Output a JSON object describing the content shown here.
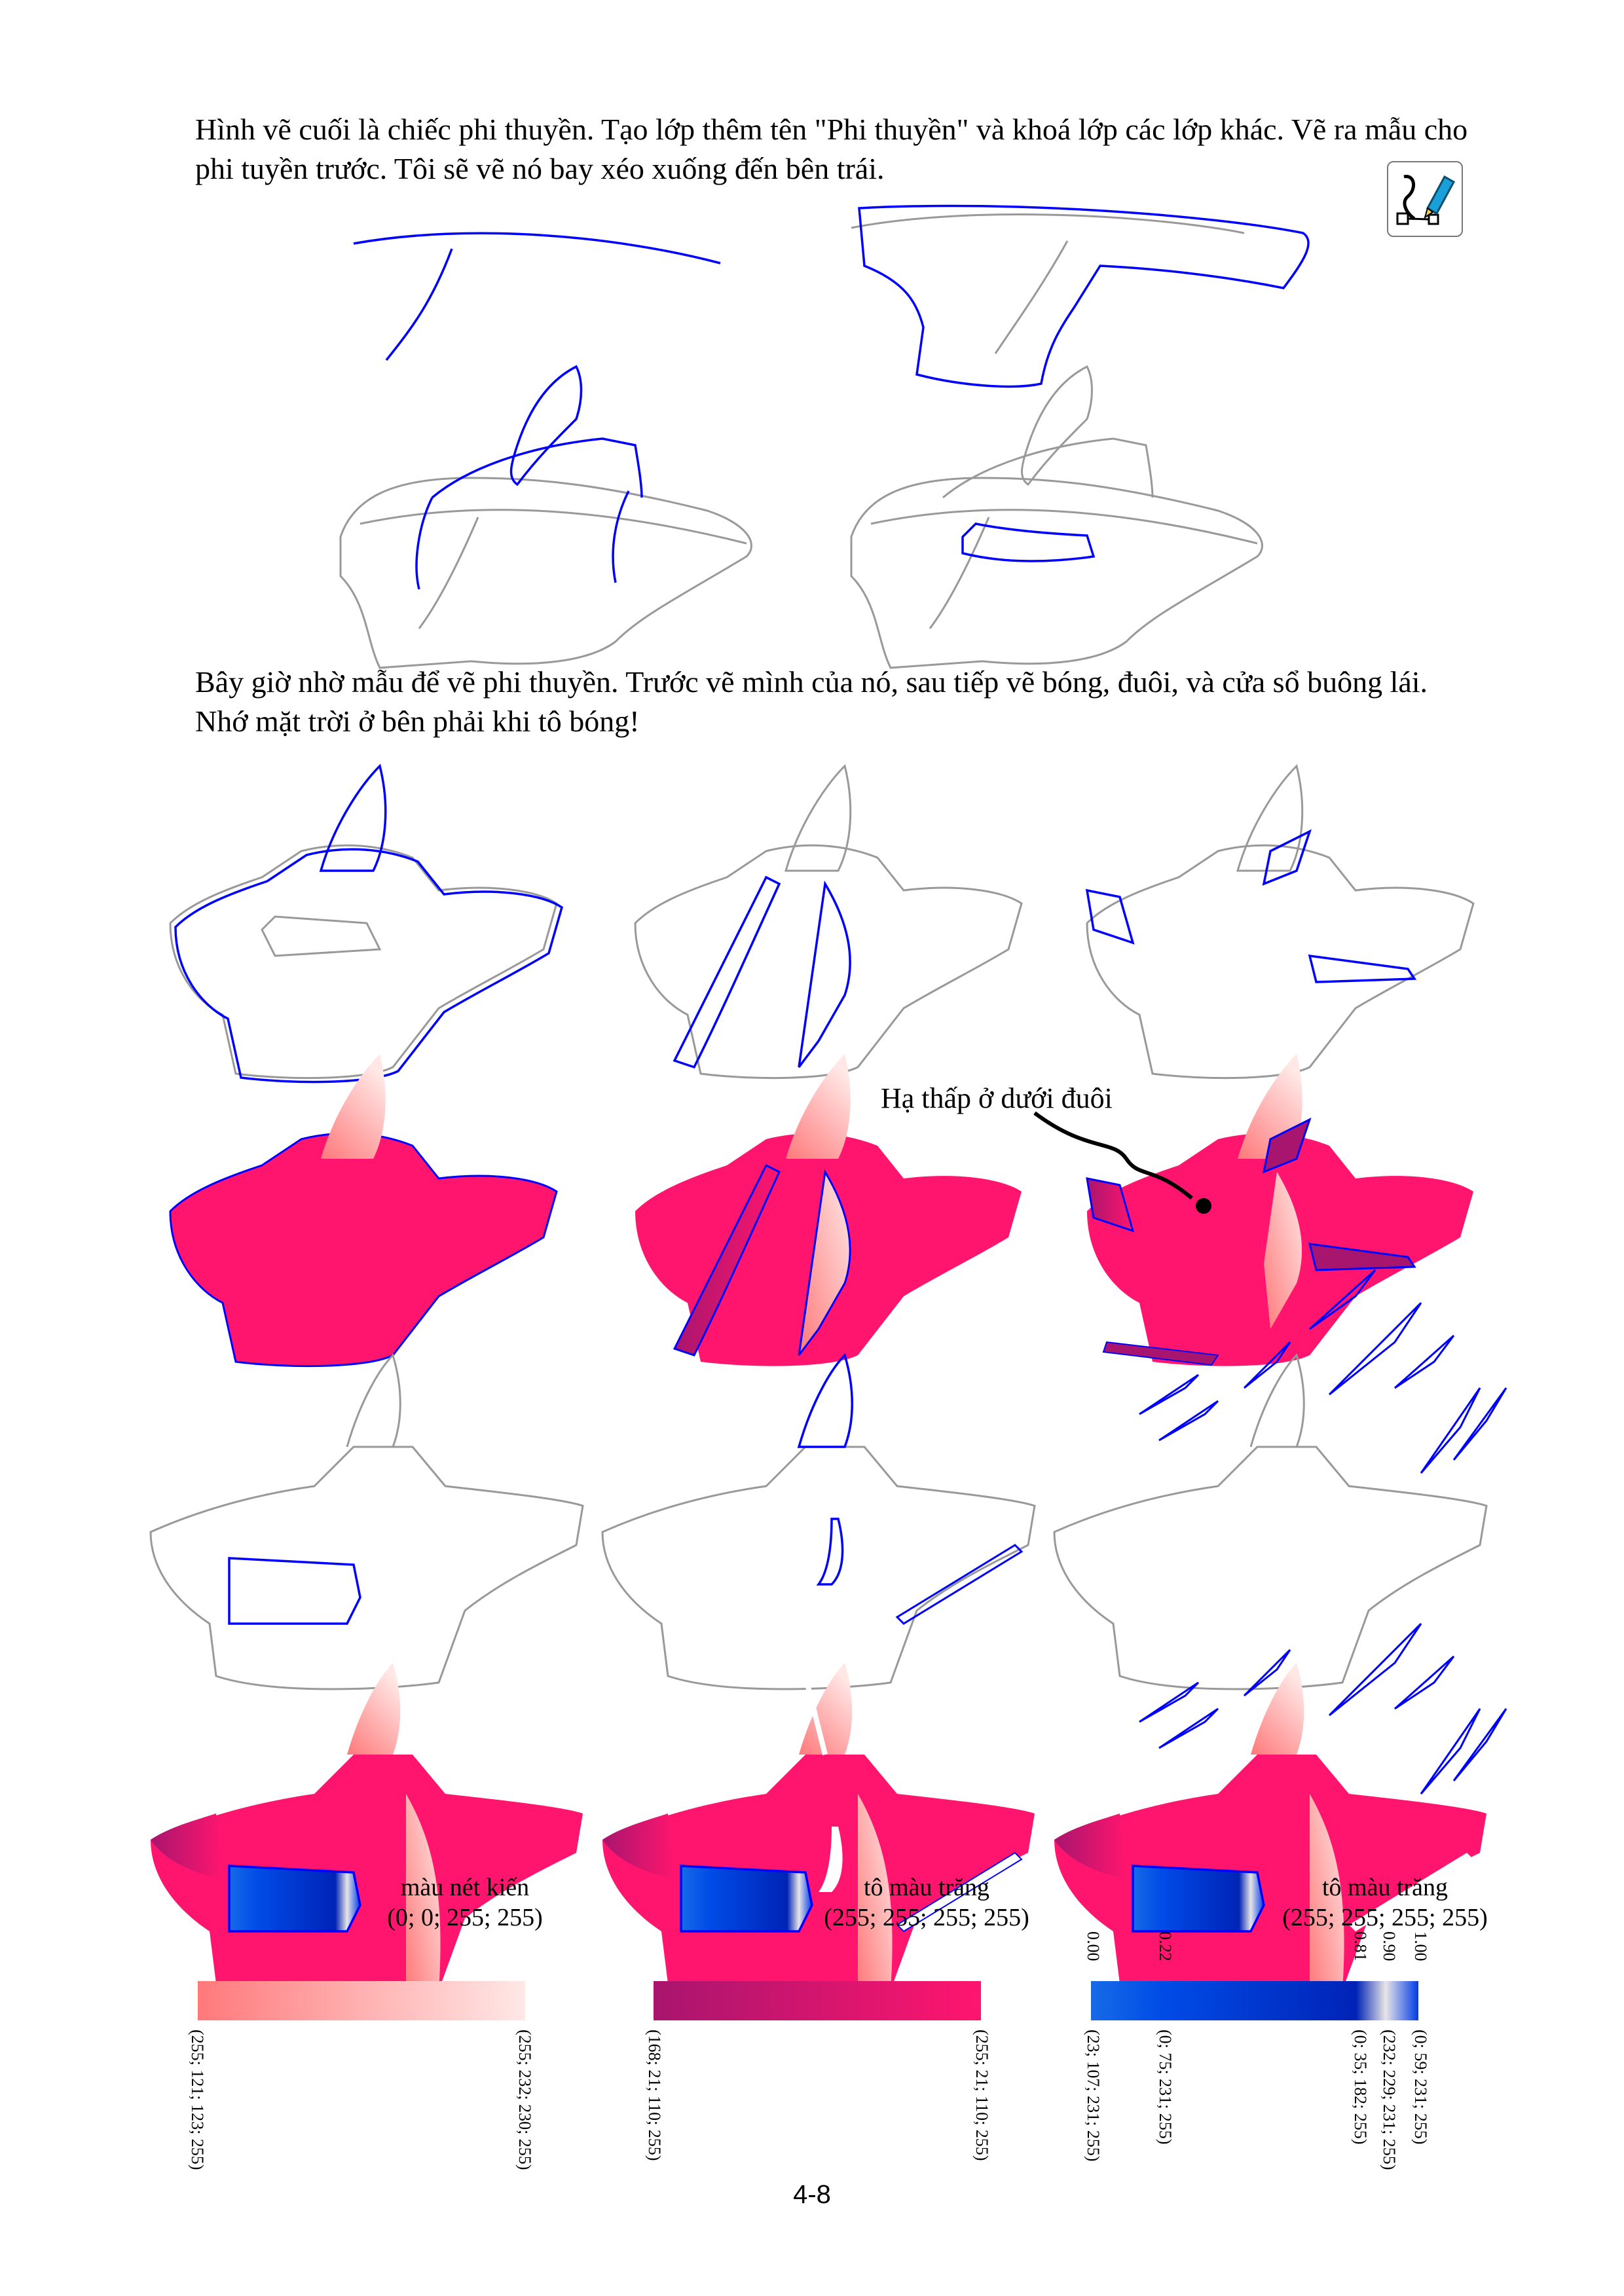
{
  "intro_text": "Hình vẽ cuối là chiếc phi thuyền. Tạo lớp thêm tên \"Phi thuyền\" và khoá lớp các lớp khác. Vẽ ra mẫu cho phi tuyền trước. Tôi sẽ vẽ nó bay xéo xuống đến bên trái.",
  "instruction_text": "Bây giờ nhờ mẫu để vẽ phi thuyền. Trước vẽ mình của nó, sau tiếp vẽ bóng, đuôi, và cửa sổ buông lái. Nhớ mặt trời ở bên phải khi tô bóng!",
  "annotation": "Hạ thấp ở dưới đuôi",
  "labels": {
    "line_color_name": "màu nét kiến",
    "line_color_value": "(0; 0; 255; 255)",
    "white_fill_1_name": "tô màu trăng",
    "white_fill_1_value": "(255; 255; 255; 255)",
    "white_fill_2_name": "tô màu trăng",
    "white_fill_2_value": "(255; 255; 255; 255)"
  },
  "colors": {
    "line": "#0000ff",
    "sketch": "#999999",
    "hull": "#ff156e",
    "shadow": "#a8156e",
    "light": "#ff797b"
  },
  "gradients": {
    "g1": {
      "start": "(255; 121; 123; 255)",
      "end": "(255; 232; 230; 255)"
    },
    "g2": {
      "start": "(168; 21; 110; 255)",
      "end": "(255; 21; 110; 255)"
    },
    "g3": {
      "stops": [
        "0.00",
        "0.22",
        "0.81",
        "0.90",
        "1.00"
      ],
      "colors": [
        "(23; 107; 231; 255)",
        "(0; 75; 231; 255)",
        "(0; 35; 182; 255)",
        "(232; 229; 231; 255)",
        "(0; 59; 231; 255)"
      ]
    }
  },
  "tool_icon": "pen-curve-tool-icon",
  "page_number": "4-8"
}
